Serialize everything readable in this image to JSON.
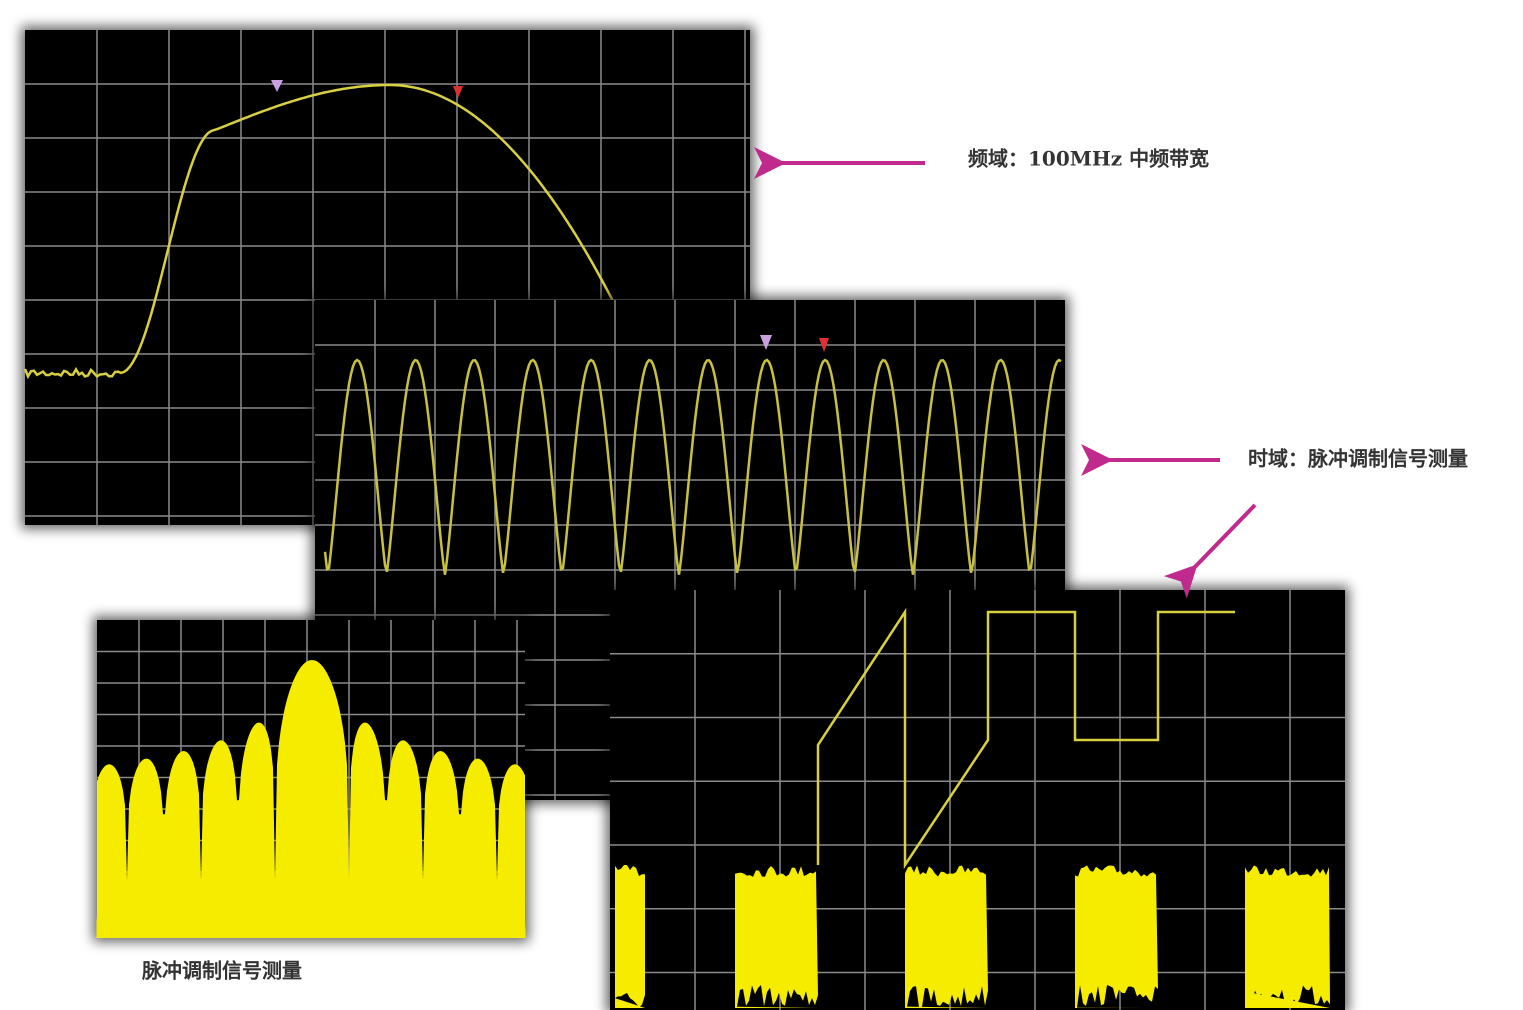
{
  "annotations": {
    "frequency_domain": "频域：100MHz 中频带宽",
    "time_domain": "时域：脉冲调制信号测量",
    "pulse_spectrum": "脉冲调制信号测量"
  }
}
